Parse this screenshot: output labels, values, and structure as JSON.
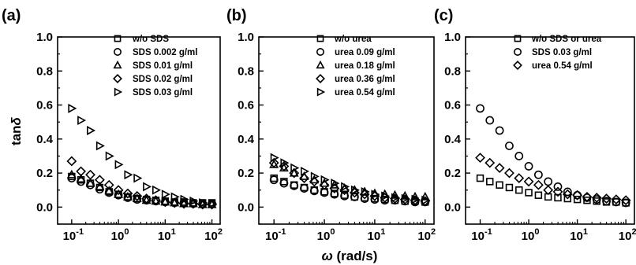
{
  "figure": {
    "y_axis_title": "tanδ",
    "x_axis_title": "ω (rad/s)"
  },
  "chart_data": [
    {
      "type": "scatter",
      "panel_label": "(a)",
      "xscale": "log",
      "xlim": [
        0.05,
        150
      ],
      "ylim": [
        -0.1,
        1.0
      ],
      "yticks": [
        "0.0",
        "0.2",
        "0.4",
        "0.6",
        "0.8",
        "1.0"
      ],
      "xticks": [
        {
          "base": "10",
          "exp": "-1"
        },
        {
          "base": "10",
          "exp": "0"
        },
        {
          "base": "10",
          "exp": "1"
        },
        {
          "base": "10",
          "exp": "2"
        }
      ],
      "legend_position": "top-right",
      "x": [
        0.1,
        0.158,
        0.251,
        0.398,
        0.631,
        1.0,
        1.585,
        2.512,
        3.981,
        6.31,
        10,
        15.85,
        25.12,
        39.81,
        63.1,
        100
      ],
      "series": [
        {
          "name": "w/o SDS",
          "marker": "square",
          "values": [
            0.18,
            0.16,
            0.14,
            0.115,
            0.09,
            0.075,
            0.06,
            0.05,
            0.045,
            0.04,
            0.035,
            0.03,
            0.03,
            0.025,
            0.025,
            0.025
          ]
        },
        {
          "name": "SDS 0.002 g/ml",
          "marker": "circle",
          "values": [
            0.17,
            0.15,
            0.13,
            0.105,
            0.085,
            0.07,
            0.055,
            0.045,
            0.04,
            0.035,
            0.03,
            0.025,
            0.025,
            0.02,
            0.02,
            0.02
          ]
        },
        {
          "name": "SDS 0.01 g/ml",
          "marker": "triangle-up",
          "values": [
            0.19,
            0.165,
            0.14,
            0.12,
            0.095,
            0.075,
            0.06,
            0.05,
            0.04,
            0.035,
            0.03,
            0.025,
            0.02,
            0.02,
            0.015,
            0.015
          ]
        },
        {
          "name": "SDS 0.02 g/ml",
          "marker": "diamond",
          "values": [
            0.27,
            0.21,
            0.19,
            0.16,
            0.13,
            0.1,
            0.08,
            0.065,
            0.05,
            0.04,
            0.03,
            0.025,
            0.02,
            0.02,
            0.015,
            0.015
          ]
        },
        {
          "name": "SDS 0.03 g/ml",
          "marker": "triangle-right",
          "values": [
            0.58,
            0.51,
            0.45,
            0.36,
            0.3,
            0.25,
            0.19,
            0.17,
            0.12,
            0.1,
            0.075,
            0.06,
            0.045,
            0.035,
            0.025,
            0.02
          ]
        }
      ]
    },
    {
      "type": "scatter",
      "panel_label": "(b)",
      "xscale": "log",
      "xlim": [
        0.05,
        150
      ],
      "ylim": [
        -0.1,
        1.0
      ],
      "yticks": [
        "0.0",
        "0.2",
        "0.4",
        "0.6",
        "0.8",
        "1.0"
      ],
      "xticks": [
        {
          "base": "10",
          "exp": "-1"
        },
        {
          "base": "10",
          "exp": "0"
        },
        {
          "base": "10",
          "exp": "1"
        },
        {
          "base": "10",
          "exp": "2"
        }
      ],
      "legend_position": "top-right",
      "x": [
        0.1,
        0.158,
        0.251,
        0.398,
        0.631,
        1.0,
        1.585,
        2.512,
        3.981,
        6.31,
        10,
        15.85,
        25.12,
        39.81,
        63.1,
        100
      ],
      "series": [
        {
          "name": "w/o urea",
          "marker": "square",
          "values": [
            0.17,
            0.15,
            0.13,
            0.115,
            0.1,
            0.09,
            0.08,
            0.07,
            0.06,
            0.055,
            0.05,
            0.045,
            0.04,
            0.035,
            0.035,
            0.03
          ]
        },
        {
          "name": "urea 0.09 g/ml",
          "marker": "circle",
          "values": [
            0.16,
            0.14,
            0.125,
            0.11,
            0.095,
            0.085,
            0.075,
            0.065,
            0.06,
            0.05,
            0.045,
            0.04,
            0.04,
            0.035,
            0.03,
            0.03
          ]
        },
        {
          "name": "urea 0.18 g/ml",
          "marker": "triangle-up",
          "values": [
            0.25,
            0.23,
            0.2,
            0.18,
            0.16,
            0.14,
            0.13,
            0.11,
            0.1,
            0.09,
            0.08,
            0.075,
            0.07,
            0.065,
            0.06,
            0.06
          ]
        },
        {
          "name": "urea 0.36 g/ml",
          "marker": "diamond",
          "values": [
            0.26,
            0.24,
            0.2,
            0.17,
            0.15,
            0.13,
            0.11,
            0.1,
            0.085,
            0.075,
            0.065,
            0.055,
            0.05,
            0.045,
            0.04,
            0.035
          ]
        },
        {
          "name": "urea 0.54 g/ml",
          "marker": "triangle-right",
          "values": [
            0.29,
            0.26,
            0.23,
            0.21,
            0.18,
            0.16,
            0.14,
            0.12,
            0.1,
            0.09,
            0.075,
            0.065,
            0.055,
            0.05,
            0.045,
            0.04
          ]
        }
      ]
    },
    {
      "type": "scatter",
      "panel_label": "(c)",
      "xscale": "log",
      "xlim": [
        0.05,
        150
      ],
      "ylim": [
        -0.1,
        1.0
      ],
      "yticks": [
        "0.0",
        "0.2",
        "0.4",
        "0.6",
        "0.8",
        "1.0"
      ],
      "xticks": [
        {
          "base": "10",
          "exp": "-1"
        },
        {
          "base": "10",
          "exp": "0"
        },
        {
          "base": "10",
          "exp": "1"
        },
        {
          "base": "10",
          "exp": "2"
        }
      ],
      "legend_position": "top-right",
      "x": [
        0.1,
        0.158,
        0.251,
        0.398,
        0.631,
        1.0,
        1.585,
        2.512,
        3.981,
        6.31,
        10,
        15.85,
        25.12,
        39.81,
        63.1,
        100
      ],
      "series": [
        {
          "name": "w/o SDS or urea",
          "marker": "square",
          "values": [
            0.17,
            0.15,
            0.13,
            0.115,
            0.1,
            0.085,
            0.07,
            0.06,
            0.055,
            0.05,
            0.045,
            0.04,
            0.035,
            0.03,
            0.03,
            0.025
          ]
        },
        {
          "name": "SDS 0.03 g/ml",
          "marker": "circle",
          "values": [
            0.58,
            0.51,
            0.45,
            0.36,
            0.3,
            0.24,
            0.19,
            0.15,
            0.12,
            0.09,
            0.07,
            0.055,
            0.045,
            0.035,
            0.03,
            0.025
          ]
        },
        {
          "name": "urea 0.54 g/ml",
          "marker": "diamond",
          "values": [
            0.29,
            0.26,
            0.23,
            0.2,
            0.17,
            0.15,
            0.13,
            0.1,
            0.09,
            0.075,
            0.07,
            0.06,
            0.055,
            0.05,
            0.045,
            0.04
          ]
        }
      ]
    }
  ]
}
